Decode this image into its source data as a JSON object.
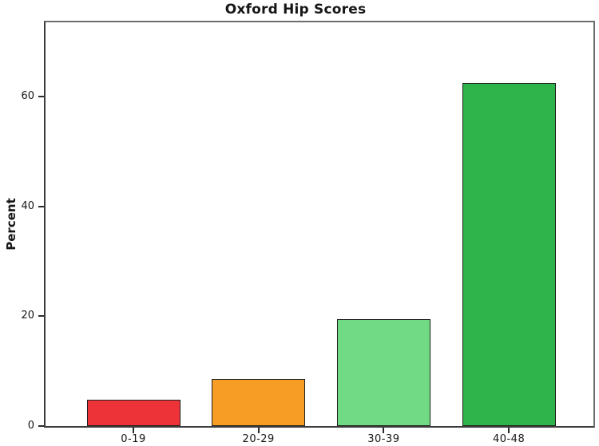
{
  "figure": {
    "background": "#ffffff",
    "frame_color": "#6e6e6e",
    "axis_color": "#3c3c3c",
    "tick_color": "#2b2b2b",
    "text_color": "#161616"
  },
  "chart_data": {
    "type": "bar",
    "title": "Oxford Hip Scores",
    "xlabel": "",
    "ylabel": "Percent",
    "categories": [
      "0-19",
      "20-29",
      "30-39",
      "40-48"
    ],
    "values": [
      4.8,
      8.5,
      19.5,
      62.5
    ],
    "bar_colors": [
      "#ee3338",
      "#f79c24",
      "#71da85",
      "#2eb44a"
    ],
    "bar_border_color": "#1f1f1f",
    "yticks": [
      0,
      20,
      40,
      60
    ],
    "ylim": [
      0,
      73.5
    ],
    "grid": false,
    "legend": "none"
  }
}
